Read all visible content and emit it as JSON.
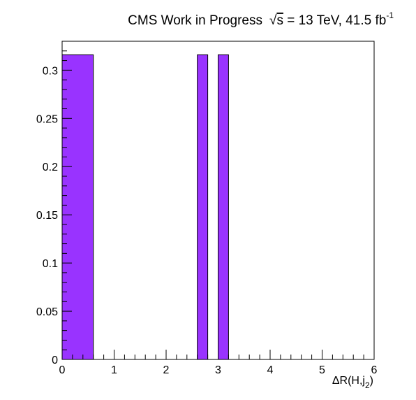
{
  "chart_data": {
    "type": "bar",
    "title": {
      "prefix": "CMS Work in Progress",
      "sqrt_symbol": "√",
      "sqrt_var": "s",
      "energy": " = 13 TeV, 41.5 fb",
      "lumi_exp": "-1"
    },
    "xlabel": {
      "main": "ΔR(H,j",
      "sub": "2",
      "close": ")"
    },
    "ylabel": "",
    "xlim": [
      0,
      6
    ],
    "ylim": [
      0,
      0.33
    ],
    "x_ticks": [
      "0",
      "1",
      "2",
      "3",
      "4",
      "5",
      "6"
    ],
    "y_ticks": [
      "0",
      "0.05",
      "0.1",
      "0.15",
      "0.2",
      "0.25",
      "0.3"
    ],
    "bars": [
      {
        "x_low": 0.0,
        "x_high": 0.6,
        "value": 0.316
      },
      {
        "x_low": 2.6,
        "x_high": 2.8,
        "value": 0.316
      },
      {
        "x_low": 3.0,
        "x_high": 3.2,
        "value": 0.316
      }
    ],
    "bar_color": "#9933ff",
    "grid": false,
    "legend": "none"
  }
}
